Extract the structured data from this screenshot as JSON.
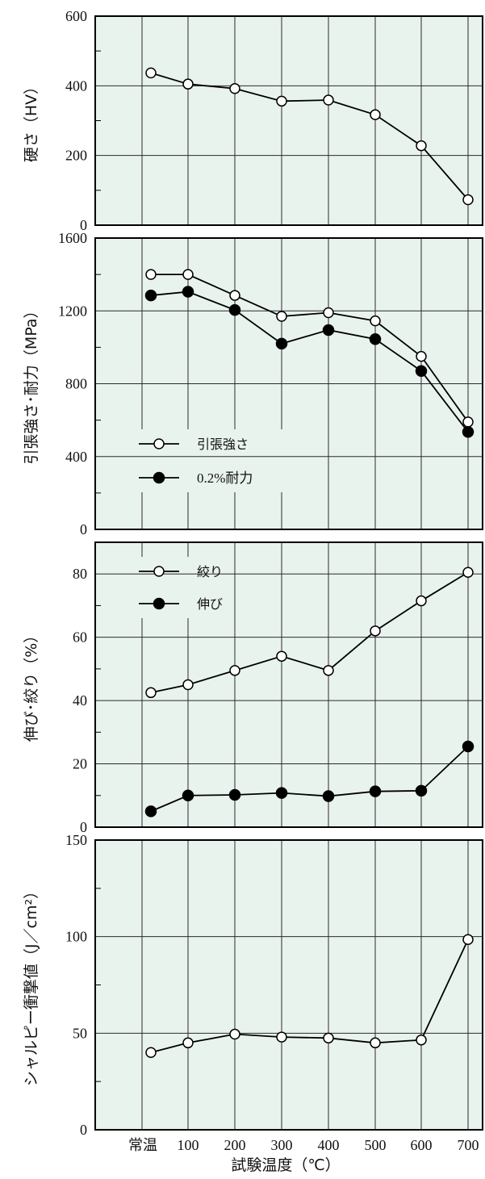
{
  "colors": {
    "panel_bg": "#e9f3ee",
    "grid": "#2a2a2a",
    "line": "#000000",
    "frame": "#000000"
  },
  "x_axis": {
    "label": "試験温度（℃）",
    "categories": [
      "常温",
      "100",
      "200",
      "300",
      "400",
      "500",
      "600",
      "700"
    ]
  },
  "chart_data": [
    {
      "type": "line",
      "ylabel": "硬さ（HV）",
      "ylim": [
        0,
        600
      ],
      "y_ticks": [
        0,
        200,
        400,
        600
      ],
      "categories": [
        "常温",
        "100",
        "200",
        "300",
        "400",
        "500",
        "600",
        "700"
      ],
      "series": [
        {
          "values": [
            437,
            405,
            392,
            356,
            359,
            317,
            228,
            73
          ],
          "marker": "open"
        }
      ],
      "grid": true
    },
    {
      "type": "line",
      "ylabel": "引張強さ･耐力（MPa）",
      "ylim": [
        0,
        1600
      ],
      "y_ticks": [
        0,
        400,
        800,
        1200,
        1600
      ],
      "categories": [
        "常温",
        "100",
        "200",
        "300",
        "400",
        "500",
        "600",
        "700"
      ],
      "series": [
        {
          "name": "引張強さ",
          "values": [
            1400,
            1400,
            1285,
            1170,
            1190,
            1145,
            950,
            590
          ],
          "marker": "open"
        },
        {
          "name": "0.2%耐力",
          "values": [
            1285,
            1305,
            1205,
            1020,
            1095,
            1045,
            870,
            535
          ],
          "marker": "filled"
        }
      ],
      "legend": "center-left",
      "grid": true
    },
    {
      "type": "line",
      "ylabel": "伸び･絞り（%）",
      "ylim": [
        0,
        90
      ],
      "y_ticks": [
        0,
        20,
        40,
        60,
        80
      ],
      "categories": [
        "常温",
        "100",
        "200",
        "300",
        "400",
        "500",
        "600",
        "700"
      ],
      "series": [
        {
          "name": "絞り",
          "values": [
            42.5,
            45,
            49.5,
            54,
            49.5,
            62,
            71.5,
            80.5
          ],
          "marker": "open"
        },
        {
          "name": "伸び",
          "values": [
            5,
            10,
            10.2,
            10.8,
            9.8,
            11.3,
            11.5,
            25.5
          ],
          "marker": "filled"
        }
      ],
      "legend": "top-left",
      "grid": true
    },
    {
      "type": "line",
      "ylabel": "シャルピー衝撃値（J／cm²）",
      "ylim": [
        0,
        150
      ],
      "y_ticks": [
        0,
        50,
        100,
        150
      ],
      "categories": [
        "常温",
        "100",
        "200",
        "300",
        "400",
        "500",
        "600",
        "700"
      ],
      "series": [
        {
          "values": [
            40,
            45,
            49.5,
            48,
            47.5,
            45,
            46.5,
            98.5
          ],
          "marker": "open"
        }
      ],
      "grid": true
    }
  ]
}
